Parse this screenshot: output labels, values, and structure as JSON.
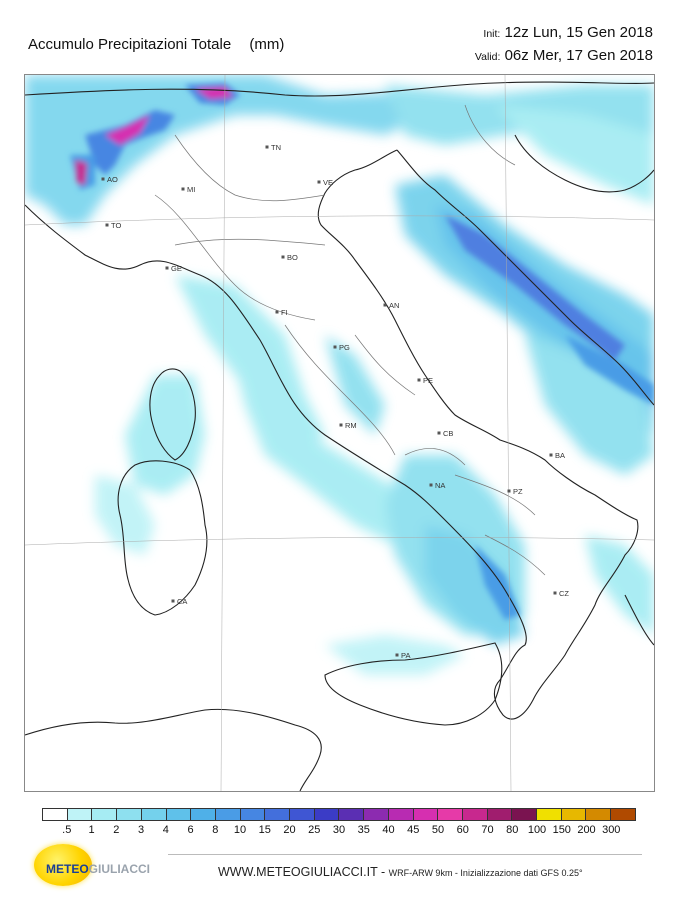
{
  "title": {
    "text": "Accumulo Precipitazioni Totale",
    "unit": "(mm)"
  },
  "run": {
    "init_label": "Init:",
    "init_value": "12z Lun, 15 Gen 2018",
    "valid_label": "Valid:",
    "valid_value": "06z Mer, 17 Gen 2018"
  },
  "cities": [
    {
      "code": "AO"
    },
    {
      "code": "MI"
    },
    {
      "code": "TN"
    },
    {
      "code": "VE"
    },
    {
      "code": "TO"
    },
    {
      "code": "BO"
    },
    {
      "code": "GE"
    },
    {
      "code": "FI"
    },
    {
      "code": "AN"
    },
    {
      "code": "PG"
    },
    {
      "code": "PE"
    },
    {
      "code": "RM"
    },
    {
      "code": "CB"
    },
    {
      "code": "BA"
    },
    {
      "code": "NA"
    },
    {
      "code": "PZ"
    },
    {
      "code": "CZ"
    },
    {
      "code": "CA"
    },
    {
      "code": "PA"
    }
  ],
  "legend": {
    "labels": [
      ".5",
      "1",
      "2",
      "3",
      "4",
      "6",
      "8",
      "10",
      "15",
      "20",
      "25",
      "30",
      "35",
      "40",
      "45",
      "50",
      "60",
      "70",
      "80",
      "100",
      "150",
      "200",
      "300"
    ],
    "colors": [
      "#ffffff",
      "#bff3f7",
      "#a6ecf3",
      "#8ee0ef",
      "#74d1ec",
      "#5fc1ea",
      "#4fb0e8",
      "#4a9ce6",
      "#4686e2",
      "#436fdc",
      "#3f56d3",
      "#3b3cc6",
      "#5b2fb3",
      "#8c2bb0",
      "#b82bb2",
      "#d62fb0",
      "#e63aa8",
      "#c8288e",
      "#a01d6e",
      "#7a1350",
      "#f0e000",
      "#e7b800",
      "#d48a00",
      "#b04a00"
    ]
  },
  "logo": {
    "part1": "METEO",
    "part2": "GIULIACCI"
  },
  "footer": {
    "site": "WWW.METEOGIULIACCI.IT",
    "sep": " - ",
    "note": "WRF-ARW 9km - Inizializzazione dati GFS 0.25°"
  }
}
